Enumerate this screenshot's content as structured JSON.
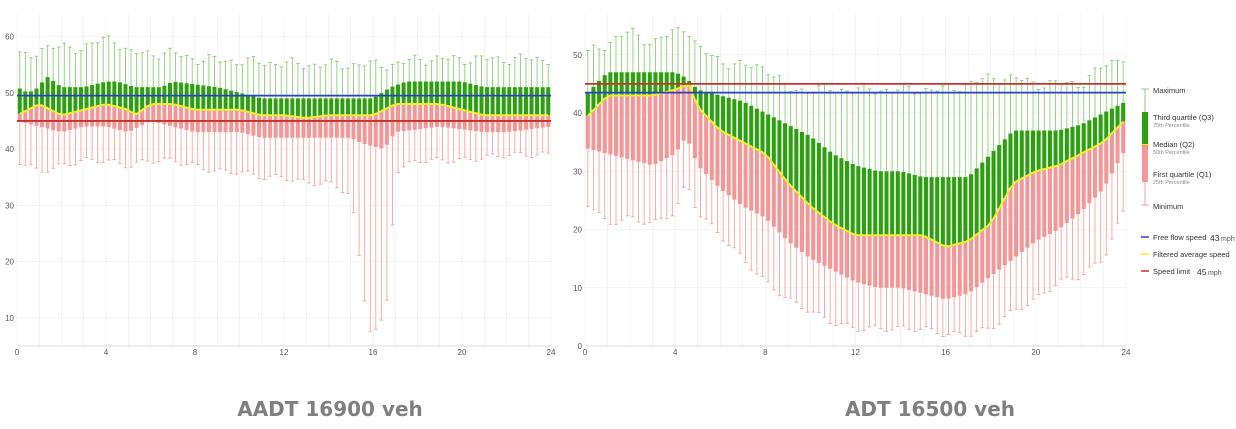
{
  "captions": {
    "left": "AADT 16900 veh",
    "right": "ADT 16500 veh"
  },
  "colors": {
    "q3": "#2ca10e",
    "q1": "#f29696",
    "whisker_top": "#8fca7a",
    "whisker_bottom": "#f0a6a0",
    "median": "#f1ee2c",
    "free_flow": "#2b3fc4",
    "speed_limit": "#c9302c",
    "grid": "#ececec"
  },
  "legend": {
    "maximum": "Maximum",
    "q3": "Third quartile (Q3)",
    "q3_sub": "75th Percentile",
    "median": "Median (Q2)",
    "median_sub": "50th Percentile",
    "q1": "First quartile (Q1)",
    "q1_sub": "25th Percentile",
    "minimum": "Minimum",
    "free_flow_label": "Free flow speed",
    "free_flow_value": "43",
    "free_flow_unit": "mph",
    "filtered_label": "Filtered average speed",
    "speed_limit_label": "Speed limit",
    "speed_limit_value": "45",
    "speed_limit_unit": "mph"
  },
  "chart_data": [
    {
      "type": "box",
      "x_ticks": [
        0,
        4,
        8,
        12,
        16,
        20,
        24
      ],
      "y_ticks": [
        10,
        20,
        30,
        40,
        50,
        60
      ],
      "xlim": [
        0,
        24
      ],
      "ylim": [
        5,
        64
      ],
      "interval_hours": 0.25,
      "free_flow_speed": 49.5,
      "speed_limit": 45,
      "knots": {
        "max": [
          [
            0,
            57
          ],
          [
            0.5,
            56
          ],
          [
            1,
            58
          ],
          [
            3,
            58
          ],
          [
            4.3,
            60
          ],
          [
            5,
            57
          ],
          [
            7,
            57
          ],
          [
            8,
            56
          ],
          [
            13,
            55
          ],
          [
            17,
            55
          ],
          [
            18,
            56
          ],
          [
            21,
            56
          ],
          [
            24,
            56
          ]
        ],
        "q3": [
          [
            0,
            51
          ],
          [
            0.5,
            50
          ],
          [
            1,
            51
          ],
          [
            1.3,
            53
          ],
          [
            2,
            51
          ],
          [
            3,
            51
          ],
          [
            4,
            52
          ],
          [
            4.5,
            52
          ],
          [
            5.3,
            51
          ],
          [
            6.5,
            51
          ],
          [
            7,
            52
          ],
          [
            9,
            51
          ],
          [
            10,
            50
          ],
          [
            11,
            49
          ],
          [
            13,
            49
          ],
          [
            14,
            49
          ],
          [
            16,
            49
          ],
          [
            16.8,
            51
          ],
          [
            17.5,
            52
          ],
          [
            19,
            52
          ],
          [
            20,
            52
          ],
          [
            21,
            51
          ],
          [
            24,
            51
          ]
        ],
        "median": [
          [
            0,
            46
          ],
          [
            0.5,
            47
          ],
          [
            1,
            48
          ],
          [
            1.5,
            47
          ],
          [
            2,
            46
          ],
          [
            3,
            47
          ],
          [
            4,
            48
          ],
          [
            5,
            47
          ],
          [
            5.3,
            46
          ],
          [
            6,
            48
          ],
          [
            7,
            48
          ],
          [
            8,
            47
          ],
          [
            9,
            47
          ],
          [
            10,
            47
          ],
          [
            11,
            46
          ],
          [
            12,
            46
          ],
          [
            13,
            45.5
          ],
          [
            14,
            46
          ],
          [
            15,
            46
          ],
          [
            16,
            46
          ],
          [
            17,
            48
          ],
          [
            19,
            48
          ],
          [
            20,
            47
          ],
          [
            21,
            46
          ],
          [
            22,
            46
          ],
          [
            23,
            46
          ],
          [
            24,
            46
          ]
        ],
        "q1": [
          [
            0,
            45
          ],
          [
            1,
            44
          ],
          [
            2,
            43
          ],
          [
            3,
            44
          ],
          [
            4,
            44
          ],
          [
            5,
            43
          ],
          [
            6,
            45
          ],
          [
            7,
            44
          ],
          [
            8,
            43
          ],
          [
            9,
            43
          ],
          [
            10,
            43
          ],
          [
            11,
            42
          ],
          [
            14,
            42
          ],
          [
            15,
            42
          ],
          [
            15.5,
            41
          ],
          [
            16.5,
            40
          ],
          [
            17,
            43
          ],
          [
            19,
            44
          ],
          [
            21,
            43
          ],
          [
            22,
            43
          ],
          [
            24,
            44
          ]
        ],
        "min": [
          [
            0,
            38
          ],
          [
            1,
            36
          ],
          [
            2,
            37
          ],
          [
            3,
            38
          ],
          [
            4,
            38
          ],
          [
            5,
            37
          ],
          [
            6,
            38
          ],
          [
            7,
            38
          ],
          [
            8,
            37
          ],
          [
            9,
            36
          ],
          [
            10,
            36
          ],
          [
            11,
            35
          ],
          [
            12,
            35
          ],
          [
            13,
            34
          ],
          [
            14,
            34
          ],
          [
            15,
            32
          ],
          [
            15.8,
            8
          ],
          [
            16.3,
            8
          ],
          [
            16.7,
            14
          ],
          [
            17,
            36
          ],
          [
            18,
            38
          ],
          [
            20,
            38
          ],
          [
            22,
            39
          ],
          [
            24,
            39
          ]
        ]
      }
    },
    {
      "type": "box",
      "x_ticks": [
        0,
        4,
        8,
        12,
        16,
        20,
        24
      ],
      "y_ticks": [
        0,
        10,
        20,
        30,
        40,
        50
      ],
      "xlim": [
        0,
        24
      ],
      "ylim": [
        0,
        57
      ],
      "interval_hours": 0.25,
      "free_flow_speed": 43.5,
      "speed_limit": 45,
      "knots": {
        "max": [
          [
            0,
            50
          ],
          [
            1,
            52
          ],
          [
            2,
            54
          ],
          [
            3,
            52
          ],
          [
            4,
            54
          ],
          [
            4.5,
            55
          ],
          [
            5,
            51
          ],
          [
            6,
            49
          ],
          [
            7,
            48
          ],
          [
            8,
            48
          ],
          [
            9,
            44
          ],
          [
            16,
            44
          ],
          [
            18,
            46
          ],
          [
            19,
            46
          ],
          [
            20,
            45
          ],
          [
            22,
            45
          ],
          [
            23,
            48
          ],
          [
            24,
            50
          ]
        ],
        "q3": [
          [
            0,
            43
          ],
          [
            0.5,
            45
          ],
          [
            1,
            47
          ],
          [
            3,
            47
          ],
          [
            4,
            47
          ],
          [
            4.5,
            46
          ],
          [
            5,
            44
          ],
          [
            6,
            43
          ],
          [
            7,
            42
          ],
          [
            8,
            40
          ],
          [
            9,
            38
          ],
          [
            10,
            36
          ],
          [
            11,
            33
          ],
          [
            12,
            31
          ],
          [
            13,
            30
          ],
          [
            14,
            30
          ],
          [
            15,
            29
          ],
          [
            16,
            29
          ],
          [
            17,
            29
          ],
          [
            18,
            33
          ],
          [
            19,
            37
          ],
          [
            20,
            37
          ],
          [
            21,
            37
          ],
          [
            22,
            38
          ],
          [
            23,
            40
          ],
          [
            24,
            42
          ]
        ],
        "median": [
          [
            0,
            39
          ],
          [
            0.5,
            41
          ],
          [
            1,
            43
          ],
          [
            3,
            43
          ],
          [
            4,
            44
          ],
          [
            4.6,
            45
          ],
          [
            5,
            41
          ],
          [
            6,
            37
          ],
          [
            7,
            35
          ],
          [
            8,
            33
          ],
          [
            9,
            28
          ],
          [
            10,
            24
          ],
          [
            11,
            21
          ],
          [
            12,
            19
          ],
          [
            14,
            19
          ],
          [
            15,
            19
          ],
          [
            16,
            17
          ],
          [
            17,
            18
          ],
          [
            18,
            21
          ],
          [
            19,
            28
          ],
          [
            20,
            30
          ],
          [
            21,
            31
          ],
          [
            22,
            33
          ],
          [
            23,
            35
          ],
          [
            24,
            39
          ]
        ],
        "q1": [
          [
            0,
            34
          ],
          [
            1,
            33
          ],
          [
            2,
            32
          ],
          [
            3,
            31
          ],
          [
            4,
            33
          ],
          [
            4.5,
            36
          ],
          [
            5,
            31
          ],
          [
            6,
            27
          ],
          [
            7,
            24
          ],
          [
            8,
            22
          ],
          [
            9,
            18
          ],
          [
            10,
            15
          ],
          [
            11,
            13
          ],
          [
            12,
            11
          ],
          [
            13,
            10
          ],
          [
            14,
            10
          ],
          [
            15,
            9
          ],
          [
            16,
            8
          ],
          [
            17,
            9
          ],
          [
            18,
            12
          ],
          [
            19,
            15
          ],
          [
            20,
            18
          ],
          [
            21,
            20
          ],
          [
            22,
            23
          ],
          [
            23,
            27
          ],
          [
            24,
            34
          ]
        ],
        "min": [
          [
            0,
            25
          ],
          [
            1,
            21
          ],
          [
            2,
            22
          ],
          [
            3,
            21
          ],
          [
            4,
            23
          ],
          [
            4.5,
            28
          ],
          [
            5,
            23
          ],
          [
            6,
            19
          ],
          [
            7,
            15
          ],
          [
            8,
            11
          ],
          [
            9,
            8
          ],
          [
            10,
            6
          ],
          [
            11,
            4
          ],
          [
            12,
            3
          ],
          [
            15,
            3
          ],
          [
            16,
            2
          ],
          [
            17,
            2
          ],
          [
            18,
            3
          ],
          [
            19,
            6
          ],
          [
            20,
            8
          ],
          [
            21,
            11
          ],
          [
            22,
            12
          ],
          [
            23,
            15
          ],
          [
            24,
            24
          ]
        ]
      }
    }
  ]
}
